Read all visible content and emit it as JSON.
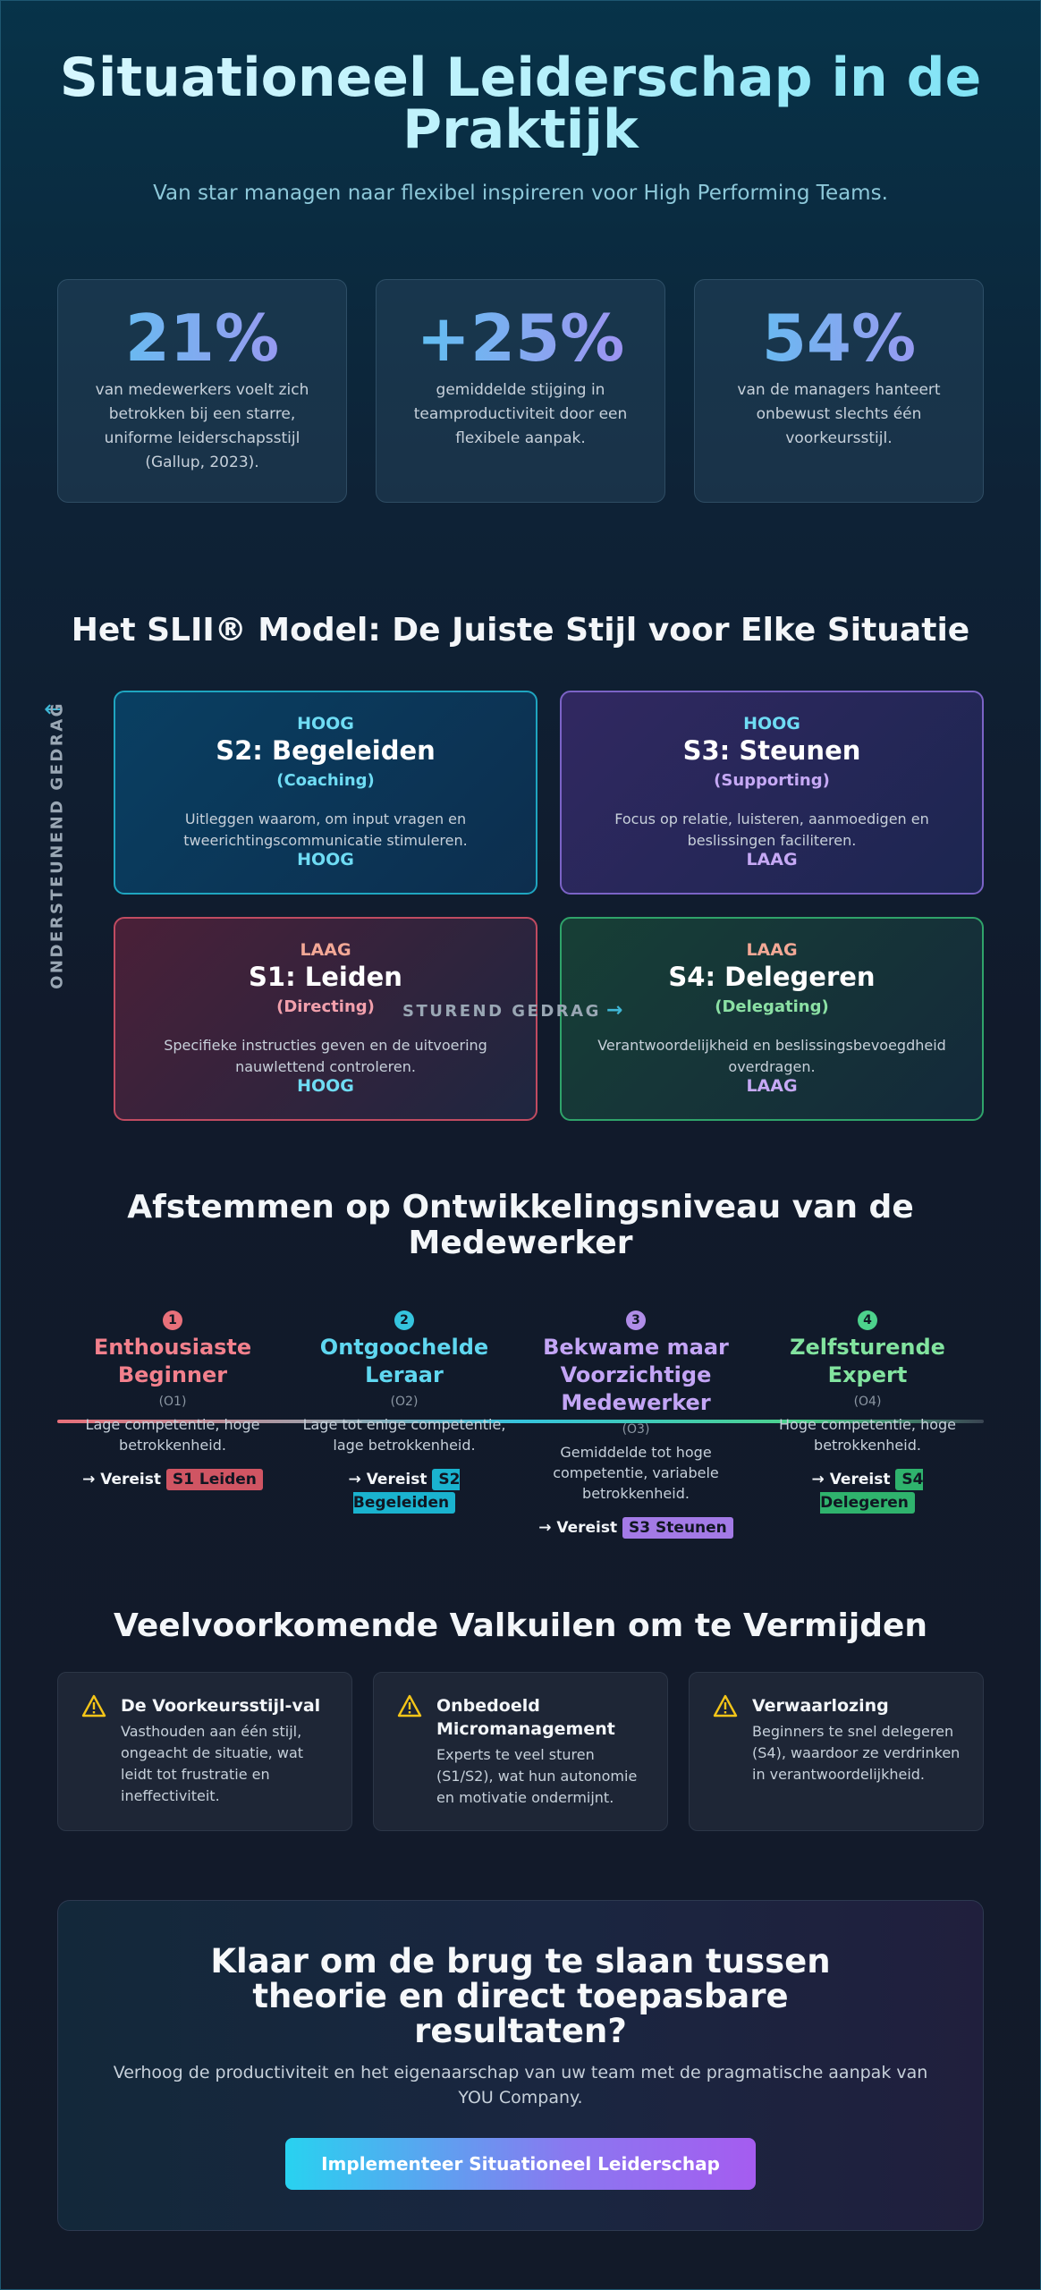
{
  "hero": {
    "title": "Situationeel Leiderschap in de Praktijk",
    "subtitle": "Van star managen naar flexibel inspireren voor High Performing Teams."
  },
  "stats": [
    {
      "value": "21%",
      "text": "van medewerkers voelt zich betrokken bij een starre, uniforme leiderschapsstijl (Gallup, 2023)."
    },
    {
      "value": "+25%",
      "text": "gemiddelde stijging in teamproductiviteit door een flexibele aanpak."
    },
    {
      "value": "54%",
      "text": "van de managers hanteert onbewust slechts één voorkeursstijl."
    }
  ],
  "model": {
    "title": "Het SLII® Model: De Juiste Stijl voor Elke Situatie",
    "y_axis_label": "ONDERSTEUNEND GEDRAG",
    "x_axis_label": "STUREND GEDRAG",
    "quadrants": {
      "s2": {
        "top": "HOOG",
        "title": "S2: Begeleiden",
        "sub": "(Coaching)",
        "desc": "Uitleggen waarom, om input vragen en tweerichtingscommunicatie stimuleren.",
        "bottom": "HOOG"
      },
      "s3": {
        "top": "HOOG",
        "title": "S3: Steunen",
        "sub": "(Supporting)",
        "desc": "Focus op relatie, luisteren, aanmoedigen en beslissingen faciliteren.",
        "bottom": "LAAG"
      },
      "s1": {
        "top": "LAAG",
        "title": "S1: Leiden",
        "sub": "(Directing)",
        "desc": "Specifieke instructies geven en de uitvoering nauwlettend controleren.",
        "bottom": "HOOG"
      },
      "s4": {
        "top": "LAAG",
        "title": "S4: Delegeren",
        "sub": "(Delegating)",
        "desc": "Verantwoordelijkheid en beslissingsbevoegdheid overdragen.",
        "bottom": "LAAG"
      }
    }
  },
  "development": {
    "title": "Afstemmen op Ontwikkelingsniveau van de Medewerker",
    "required_label": "→ Vereist",
    "stages": [
      {
        "num": "1",
        "title": "Enthousiaste Beginner",
        "code": "(O1)",
        "desc": "Lage competentie, hoge betrokkenheid.",
        "style": "S1 Leiden",
        "color": "#f2808c"
      },
      {
        "num": "2",
        "title": "Ontgoochelde Leraar",
        "code": "(O2)",
        "desc": "Lage tot enige competentie, lage betrokkenheid.",
        "style": "S2 Begeleiden",
        "color": "#5fd7f0"
      },
      {
        "num": "3",
        "title": "Bekwame maar Voorzichtige Medewerker",
        "code": "(O3)",
        "desc": "Gemiddelde tot hoge competentie, variabele betrokkenheid.",
        "style": "S3 Steunen",
        "color": "#c3a5f5"
      },
      {
        "num": "4",
        "title": "Zelfsturende Expert",
        "code": "(O4)",
        "desc": "Hoge competentie, hoge betrokkenheid.",
        "style": "S4 Delegeren",
        "color": "#82e39f"
      }
    ]
  },
  "pitfalls": {
    "title": "Veelvoorkomende Valkuilen om te Vermijden",
    "items": [
      {
        "title": "De Voorkeursstijl-val",
        "desc": "Vasthouden aan één stijl, ongeacht de situatie, wat leidt tot frustratie en ineffectiviteit."
      },
      {
        "title": "Onbedoeld Micromanagement",
        "desc": "Experts te veel sturen (S1/S2), wat hun autonomie en motivatie ondermijnt."
      },
      {
        "title": "Verwaarlozing",
        "desc": "Beginners te snel delegeren (S4), waardoor ze verdrinken in verantwoordelijkheid."
      }
    ]
  },
  "cta": {
    "title": "Klaar om de brug te slaan tussen theorie en direct toepasbare resultaten?",
    "subtitle": "Verhoog de productiviteit en het eigenaarschap van uw team met de pragmatische aanpak van YOU Company.",
    "button": "Implementeer Situationeel Leiderschap"
  },
  "icons": {
    "warning": "warning-triangle-icon",
    "arrow_up": "arrow-up-icon",
    "arrow_right": "arrow-right-icon"
  },
  "colors": {
    "accent_cyan": "#1fa5c0",
    "accent_purple": "#7b63c6",
    "accent_red": "#c04b61",
    "accent_green": "#2fa36a",
    "warning": "#f5c518"
  }
}
